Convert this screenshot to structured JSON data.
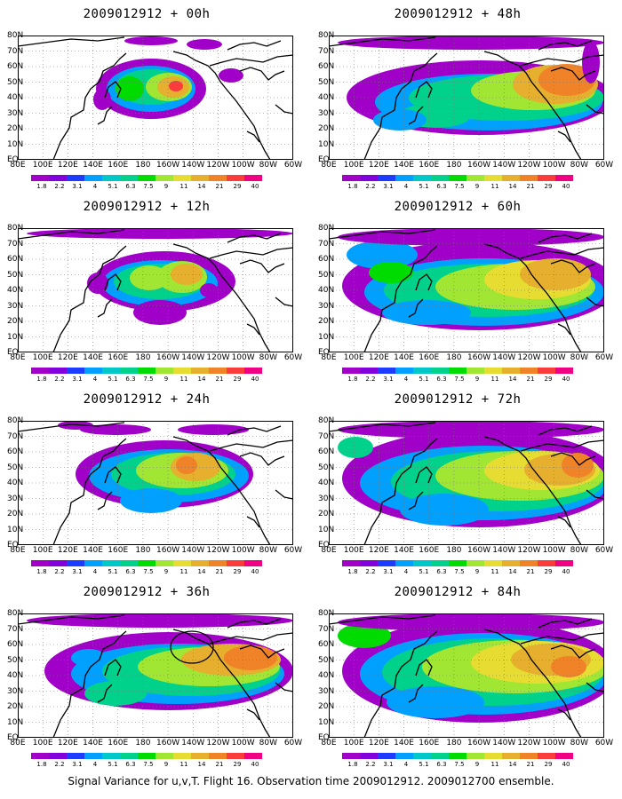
{
  "caption": "Signal Variance for u,v,T. Flight 16. Observation time 2009012912. 2009012700 ensemble.",
  "lat_labels": [
    "80N",
    "70N",
    "60N",
    "50N",
    "40N",
    "30N",
    "20N",
    "10N",
    "EQ"
  ],
  "lon_labels": [
    "80E",
    "100E",
    "120E",
    "140E",
    "160E",
    "180",
    "160W",
    "140W",
    "120W",
    "100W",
    "80W",
    "60W"
  ],
  "colorbar": {
    "levels": [
      "1.8",
      "2.2",
      "3.1",
      "4",
      "5.1",
      "6.3",
      "7.5",
      "9",
      "11",
      "14",
      "21",
      "29",
      "40"
    ],
    "colors": [
      "#a000c8",
      "#8200dc",
      "#1e3cff",
      "#00a0ff",
      "#00c8c8",
      "#00d28c",
      "#00dc00",
      "#a0e632",
      "#e6dc32",
      "#e6af2d",
      "#f08228",
      "#fa3c3c",
      "#f00082"
    ]
  },
  "panels": [
    {
      "title": "2009012912 + 00h",
      "lead": "00h"
    },
    {
      "title": "2009012912 + 48h",
      "lead": "48h"
    },
    {
      "title": "2009012912 + 12h",
      "lead": "12h"
    },
    {
      "title": "2009012912 + 60h",
      "lead": "60h"
    },
    {
      "title": "2009012912 + 24h",
      "lead": "24h"
    },
    {
      "title": "2009012912 + 72h",
      "lead": "72h"
    },
    {
      "title": "2009012912 + 36h",
      "lead": "36h"
    },
    {
      "title": "2009012912 + 84h",
      "lead": "84h"
    }
  ]
}
